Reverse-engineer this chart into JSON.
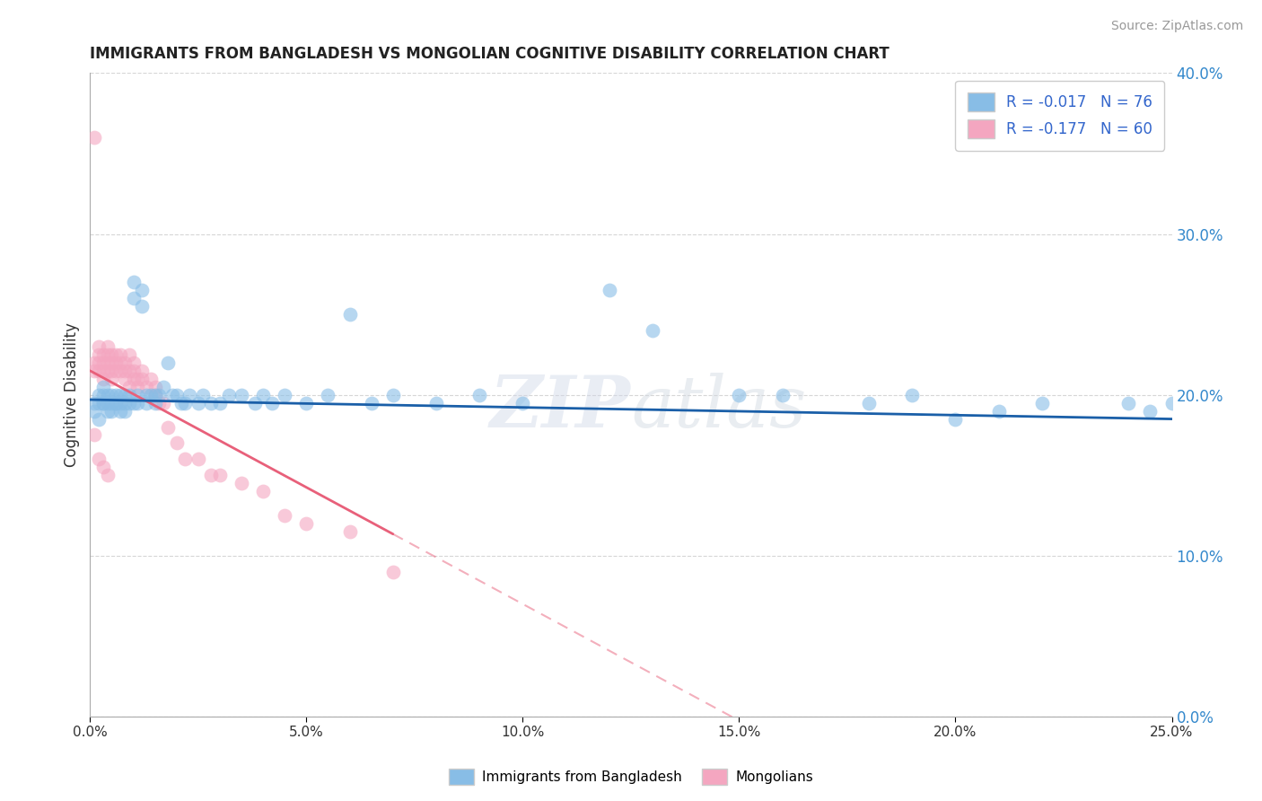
{
  "title": "IMMIGRANTS FROM BANGLADESH VS MONGOLIAN COGNITIVE DISABILITY CORRELATION CHART",
  "source": "Source: ZipAtlas.com",
  "ylabel": "Cognitive Disability",
  "legend_label1": "Immigrants from Bangladesh",
  "legend_label2": "Mongolians",
  "R1": -0.017,
  "N1": 76,
  "R2": -0.177,
  "N2": 60,
  "xlim": [
    0.0,
    0.25
  ],
  "ylim": [
    0.0,
    0.4
  ],
  "xticks": [
    0.0,
    0.05,
    0.1,
    0.15,
    0.2,
    0.25
  ],
  "yticks": [
    0.0,
    0.1,
    0.2,
    0.3,
    0.4
  ],
  "color_blue": "#88bde6",
  "color_pink": "#f4a6c0",
  "trendline_blue": "#1a5fa8",
  "trendline_pink": "#e8607a",
  "background": "#ffffff",
  "grid_color": "#cccccc",
  "blue_scatter_x": [
    0.001,
    0.001,
    0.002,
    0.002,
    0.002,
    0.003,
    0.003,
    0.003,
    0.003,
    0.004,
    0.004,
    0.004,
    0.005,
    0.005,
    0.005,
    0.006,
    0.006,
    0.006,
    0.007,
    0.007,
    0.007,
    0.008,
    0.008,
    0.008,
    0.009,
    0.009,
    0.01,
    0.01,
    0.01,
    0.011,
    0.011,
    0.012,
    0.012,
    0.013,
    0.013,
    0.014,
    0.015,
    0.015,
    0.016,
    0.017,
    0.018,
    0.019,
    0.02,
    0.021,
    0.022,
    0.023,
    0.025,
    0.026,
    0.028,
    0.03,
    0.032,
    0.035,
    0.038,
    0.04,
    0.042,
    0.045,
    0.05,
    0.055,
    0.06,
    0.065,
    0.07,
    0.08,
    0.09,
    0.1,
    0.12,
    0.13,
    0.15,
    0.16,
    0.18,
    0.19,
    0.2,
    0.21,
    0.22,
    0.24,
    0.245,
    0.25
  ],
  "blue_scatter_y": [
    0.19,
    0.195,
    0.2,
    0.185,
    0.195,
    0.2,
    0.195,
    0.195,
    0.205,
    0.19,
    0.2,
    0.195,
    0.195,
    0.2,
    0.19,
    0.195,
    0.2,
    0.195,
    0.19,
    0.2,
    0.195,
    0.195,
    0.2,
    0.19,
    0.2,
    0.195,
    0.195,
    0.27,
    0.26,
    0.2,
    0.195,
    0.255,
    0.265,
    0.195,
    0.2,
    0.2,
    0.195,
    0.2,
    0.2,
    0.205,
    0.22,
    0.2,
    0.2,
    0.195,
    0.195,
    0.2,
    0.195,
    0.2,
    0.195,
    0.195,
    0.2,
    0.2,
    0.195,
    0.2,
    0.195,
    0.2,
    0.195,
    0.2,
    0.25,
    0.195,
    0.2,
    0.195,
    0.2,
    0.195,
    0.265,
    0.24,
    0.2,
    0.2,
    0.195,
    0.2,
    0.185,
    0.19,
    0.195,
    0.195,
    0.19,
    0.195
  ],
  "pink_scatter_x": [
    0.001,
    0.001,
    0.001,
    0.002,
    0.002,
    0.002,
    0.002,
    0.003,
    0.003,
    0.003,
    0.003,
    0.004,
    0.004,
    0.004,
    0.004,
    0.005,
    0.005,
    0.005,
    0.005,
    0.006,
    0.006,
    0.006,
    0.007,
    0.007,
    0.007,
    0.008,
    0.008,
    0.008,
    0.009,
    0.009,
    0.009,
    0.01,
    0.01,
    0.01,
    0.011,
    0.011,
    0.012,
    0.012,
    0.013,
    0.014,
    0.015,
    0.015,
    0.016,
    0.017,
    0.018,
    0.02,
    0.022,
    0.025,
    0.028,
    0.03,
    0.035,
    0.04,
    0.045,
    0.05,
    0.06,
    0.07,
    0.001,
    0.002,
    0.003,
    0.004
  ],
  "pink_scatter_y": [
    0.36,
    0.215,
    0.22,
    0.23,
    0.22,
    0.215,
    0.225,
    0.225,
    0.215,
    0.22,
    0.21,
    0.23,
    0.225,
    0.215,
    0.22,
    0.225,
    0.215,
    0.22,
    0.21,
    0.225,
    0.215,
    0.22,
    0.225,
    0.215,
    0.22,
    0.21,
    0.22,
    0.215,
    0.225,
    0.215,
    0.205,
    0.22,
    0.21,
    0.215,
    0.21,
    0.205,
    0.215,
    0.21,
    0.205,
    0.21,
    0.205,
    0.2,
    0.195,
    0.195,
    0.18,
    0.17,
    0.16,
    0.16,
    0.15,
    0.15,
    0.145,
    0.14,
    0.125,
    0.12,
    0.115,
    0.09,
    0.175,
    0.16,
    0.155,
    0.15
  ]
}
